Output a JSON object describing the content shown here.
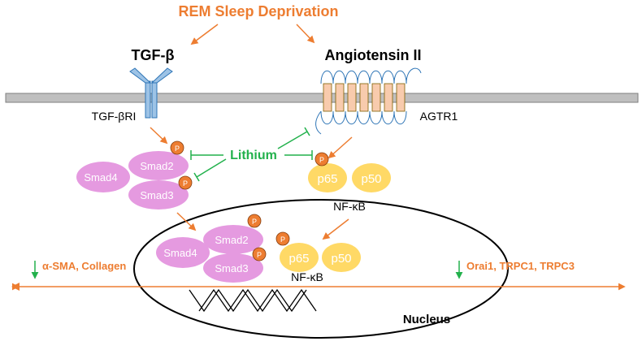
{
  "title": "REM Sleep Deprivation",
  "ligands": {
    "tgf": "TGF-β",
    "ang": "Angiotensin II"
  },
  "receptors": {
    "tgf": "TGF-βRI",
    "agtr": "AGTR1"
  },
  "inhibitor": "Lithium",
  "cytoplasm": {
    "smad2": "Smad2",
    "smad3": "Smad3",
    "smad4": "Smad4",
    "p65": "p65",
    "p50": "p50",
    "nfkb": "NF-κB"
  },
  "nucleus": {
    "label": "Nucleus",
    "smad2": "Smad2",
    "smad3": "Smad3",
    "smad4": "Smad4",
    "p65": "p65",
    "p50": "p50",
    "nfkb": "NF-κB"
  },
  "phospho": "P",
  "outputs": {
    "left": "α-SMA, Collagen",
    "right": "Orai1, TRPC1, TRPC3"
  },
  "colors": {
    "orange": "#ED7D31",
    "green": "#22B14C",
    "pink": "#E59AE0",
    "yellow": "#FFD966",
    "salmon": "#F8CBAD",
    "blue": "#9DC3E6",
    "membrane": "#BFBFBF"
  }
}
